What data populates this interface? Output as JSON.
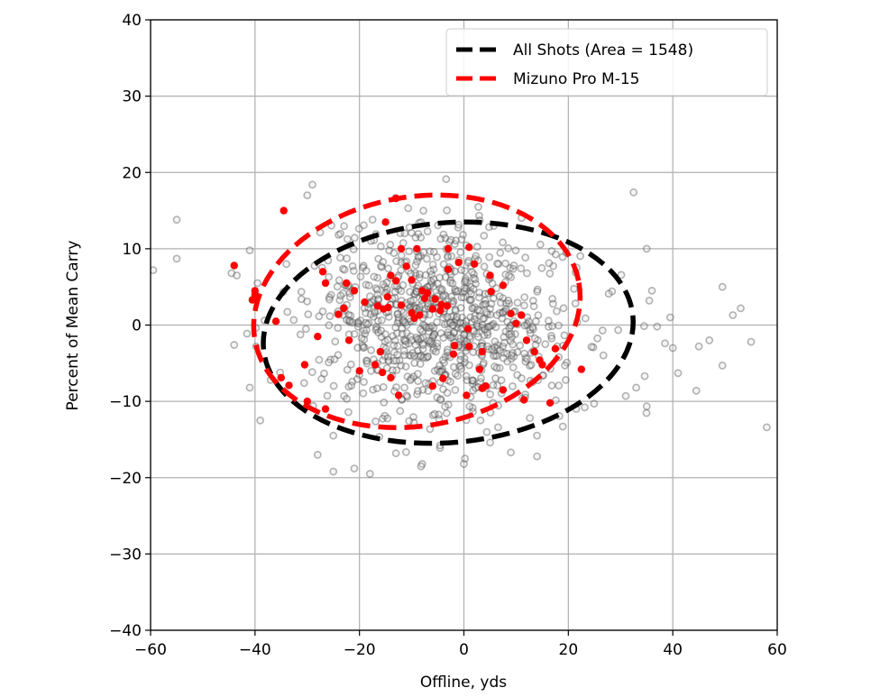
{
  "chart_data": {
    "type": "scatter",
    "title": "",
    "xlabel": "Offline, yds",
    "ylabel": "Percent of Mean Carry",
    "xlim": [
      -60,
      60
    ],
    "ylim": [
      -40,
      40
    ],
    "xticks": [
      -60,
      -40,
      -20,
      0,
      20,
      40,
      60
    ],
    "yticks": [
      -40,
      -30,
      -20,
      -10,
      0,
      10,
      20,
      30,
      40
    ],
    "xtick_labels": [
      "−60",
      "−40",
      "−20",
      "0",
      "20",
      "40",
      "60"
    ],
    "ytick_labels": [
      "−40",
      "−30",
      "−20",
      "−10",
      "0",
      "10",
      "20",
      "30",
      "40"
    ],
    "grid": true,
    "legend_position": "upper right",
    "legend": [
      {
        "label": "All Shots (Area = 1548)",
        "color": "#000000",
        "style": "dashed"
      },
      {
        "label": "Mizuno Pro M-15",
        "color": "#ff0000",
        "style": "dashed"
      }
    ],
    "ellipses": [
      {
        "name": "All Shots",
        "area": 1548,
        "center": [
          -3,
          -1
        ],
        "semi_x": 35.5,
        "semi_y": 14.4,
        "rotation_deg": -5,
        "color": "#000000"
      },
      {
        "name": "Mizuno Pro M-15",
        "center": [
          -9,
          1.8
        ],
        "semi_x": 31.5,
        "semi_y": 15.0,
        "rotation_deg": -10,
        "color": "#ff0000"
      }
    ],
    "series": [
      {
        "name": "All Shots (points)",
        "color": "#808080",
        "marker": "open-circle",
        "generated": {
          "count": 900,
          "center": [
            -4,
            0
          ],
          "sd_x": 12.5,
          "sd_y": 6.2,
          "seed": 7
        },
        "outliers": [
          [
            -59.5,
            7.2
          ],
          [
            -55,
            13.8
          ],
          [
            -55,
            8.7
          ],
          [
            -44.5,
            6.8
          ],
          [
            -44,
            -2.6
          ],
          [
            -43.5,
            6.5
          ],
          [
            -41,
            9.8
          ],
          [
            -39,
            -12.5
          ],
          [
            -41,
            -8.2
          ],
          [
            -37,
            -7.2
          ],
          [
            -39.8,
            -2.8
          ],
          [
            -38.2,
            0.6
          ],
          [
            -34,
            8
          ],
          [
            -30,
            17
          ],
          [
            -29,
            18.4
          ],
          [
            -28,
            -17
          ],
          [
            -25,
            -19.2
          ],
          [
            -25,
            -14.5
          ],
          [
            -21,
            -18.8
          ],
          [
            -18,
            -19.5
          ],
          [
            -8,
            -18.2
          ],
          [
            -8.2,
            -18.5
          ],
          [
            0,
            -18.2
          ],
          [
            0.2,
            -17.5
          ],
          [
            5,
            -15.4
          ],
          [
            9,
            -16.7
          ],
          [
            14,
            -17.2
          ],
          [
            32.5,
            17.4
          ],
          [
            35,
            10
          ],
          [
            36,
            4.5
          ],
          [
            35.5,
            3.2
          ],
          [
            37,
            -0.2
          ],
          [
            40,
            -3
          ],
          [
            41,
            -6.3
          ],
          [
            39.5,
            1
          ],
          [
            38.5,
            -2.4
          ],
          [
            45,
            -2.8
          ],
          [
            47,
            -2
          ],
          [
            49.5,
            -5.3
          ],
          [
            49.5,
            5
          ],
          [
            51.5,
            1.3
          ],
          [
            53,
            2.2
          ],
          [
            55,
            -2.2
          ],
          [
            58,
            -13.4
          ],
          [
            44.5,
            -8.6
          ],
          [
            33,
            -8.2
          ],
          [
            31,
            -9.3
          ]
        ]
      },
      {
        "name": "Mizuno Pro M-15",
        "color": "#ff0000",
        "marker": "filled-circle",
        "points": [
          [
            -44,
            7.8
          ],
          [
            -34.5,
            15
          ],
          [
            -27,
            7
          ],
          [
            -36,
            0.5
          ],
          [
            -26.5,
            5.5
          ],
          [
            -22.5,
            5.5
          ],
          [
            -24,
            1.4
          ],
          [
            -23,
            2.2
          ],
          [
            -13,
            16.6
          ],
          [
            -15,
            13.5
          ],
          [
            -12,
            10
          ],
          [
            -9,
            10
          ],
          [
            -11,
            7.7
          ],
          [
            -3,
            7.3
          ],
          [
            -3,
            10
          ],
          [
            -1,
            8.2
          ],
          [
            -21,
            4.5
          ],
          [
            -22,
            -2
          ],
          [
            -19,
            3
          ],
          [
            -14,
            6.5
          ],
          [
            -13,
            5.8
          ],
          [
            -10,
            5.9
          ],
          [
            -16.5,
            2.5
          ],
          [
            -14.5,
            2.3
          ],
          [
            -12,
            2.6
          ],
          [
            -7,
            4.2
          ],
          [
            -7.5,
            3.5
          ],
          [
            -8.5,
            1.3
          ],
          [
            -10,
            1.6
          ],
          [
            -9.5,
            0.9
          ],
          [
            -6,
            2.1
          ],
          [
            -4.5,
            1.9
          ],
          [
            -3.2,
            2.5
          ],
          [
            -4.3,
            2.7
          ],
          [
            -8,
            4.5
          ],
          [
            1,
            10.2
          ],
          [
            2,
            8
          ],
          [
            5,
            6.5
          ],
          [
            5.2,
            4.4
          ],
          [
            7.5,
            5.2
          ],
          [
            9,
            1.5
          ],
          [
            11,
            1.3
          ],
          [
            -2,
            -3.8
          ],
          [
            -1.8,
            -2.7
          ],
          [
            1,
            -2.8
          ],
          [
            3,
            -5.8
          ],
          [
            3.5,
            -3.5
          ],
          [
            10,
            0.2
          ],
          [
            12,
            -2
          ],
          [
            13.5,
            -3.5
          ],
          [
            14.5,
            -4.6
          ],
          [
            15,
            -5.2
          ],
          [
            17.5,
            -3.1
          ],
          [
            22.5,
            -5.8
          ],
          [
            -17,
            -5.2
          ],
          [
            -16,
            -3.5
          ],
          [
            -20,
            -6
          ],
          [
            -12.5,
            -9.2
          ],
          [
            -15.6,
            -6.2
          ],
          [
            -14,
            -6.9
          ],
          [
            -6,
            -8
          ],
          [
            -4,
            -7
          ],
          [
            3.5,
            -8.3
          ],
          [
            4.2,
            -8
          ],
          [
            7.5,
            -8.5
          ],
          [
            11.5,
            -9.8
          ],
          [
            16.5,
            -10.2
          ],
          [
            0.5,
            -9.2
          ],
          [
            -30,
            -10
          ],
          [
            -28,
            -1.5
          ],
          [
            -26.5,
            -11
          ],
          [
            -35,
            -6.9
          ],
          [
            -33.5,
            -7.9
          ],
          [
            -30.5,
            -5.2
          ],
          [
            -40,
            4
          ],
          [
            -40.5,
            3.3
          ],
          [
            -40,
            4.5
          ],
          [
            -15.4,
            2.1
          ],
          [
            -14.6,
            3.7
          ],
          [
            -5.5,
            3.4
          ],
          [
            0.8,
            -0.5
          ]
        ]
      }
    ]
  },
  "axes": {
    "xlabel": "Offline, yds",
    "ylabel": "Percent of Mean Carry"
  },
  "legend": {
    "all_shots_label": "All Shots (Area = 1548)",
    "mizuno_label": "Mizuno Pro M-15"
  }
}
